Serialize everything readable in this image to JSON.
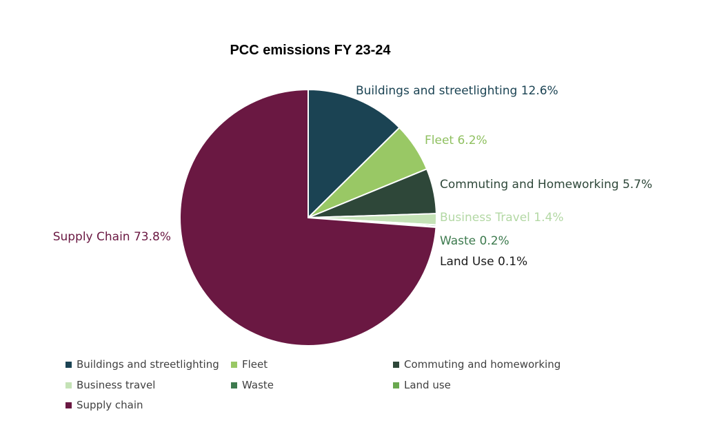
{
  "chart_data": {
    "type": "pie",
    "title": "PCC emissions FY 23-24",
    "start_angle_deg": 0,
    "direction": "clockwise",
    "slices": [
      {
        "name": "Buildings and streetlighting",
        "value": 12.6,
        "label": "Buildings and streetlighting 12.6%",
        "color": "#1b4353",
        "label_color": "#1b4353"
      },
      {
        "name": "Fleet",
        "value": 6.2,
        "label": "Fleet 6.2%",
        "color": "#99c865",
        "label_color": "#8fc060"
      },
      {
        "name": "Commuting and homeworking",
        "value": 5.7,
        "label": "Commuting and Homeworking 5.7%",
        "color": "#2e4739",
        "label_color": "#2e4739"
      },
      {
        "name": "Business travel",
        "value": 1.4,
        "label": "Business Travel 1.4%",
        "color": "#c4e2b6",
        "label_color": "#b3d8a4"
      },
      {
        "name": "Waste",
        "value": 0.2,
        "label": "Waste 0.2%",
        "color": "#3d7a4e",
        "label_color": "#3d7a4e"
      },
      {
        "name": "Land use",
        "value": 0.1,
        "label": "Land Use 0.1%",
        "color": "#6aa84f",
        "label_color": "#1a1a1a"
      },
      {
        "name": "Supply chain",
        "value": 73.8,
        "label": "Supply Chain 73.8%",
        "color": "#6a1842",
        "label_color": "#6a1842"
      }
    ],
    "legend": {
      "position": "bottom",
      "items": [
        {
          "label": "Buildings and streetlighting",
          "color": "#1b4353"
        },
        {
          "label": "Fleet",
          "color": "#99c865"
        },
        {
          "label": "Commuting and homeworking",
          "color": "#2e4739"
        },
        {
          "label": "Business travel",
          "color": "#c4e2b6"
        },
        {
          "label": "Waste",
          "color": "#3d7a4e"
        },
        {
          "label": "Land use",
          "color": "#6aa84f"
        },
        {
          "label": "Supply chain",
          "color": "#6a1842"
        }
      ]
    }
  }
}
